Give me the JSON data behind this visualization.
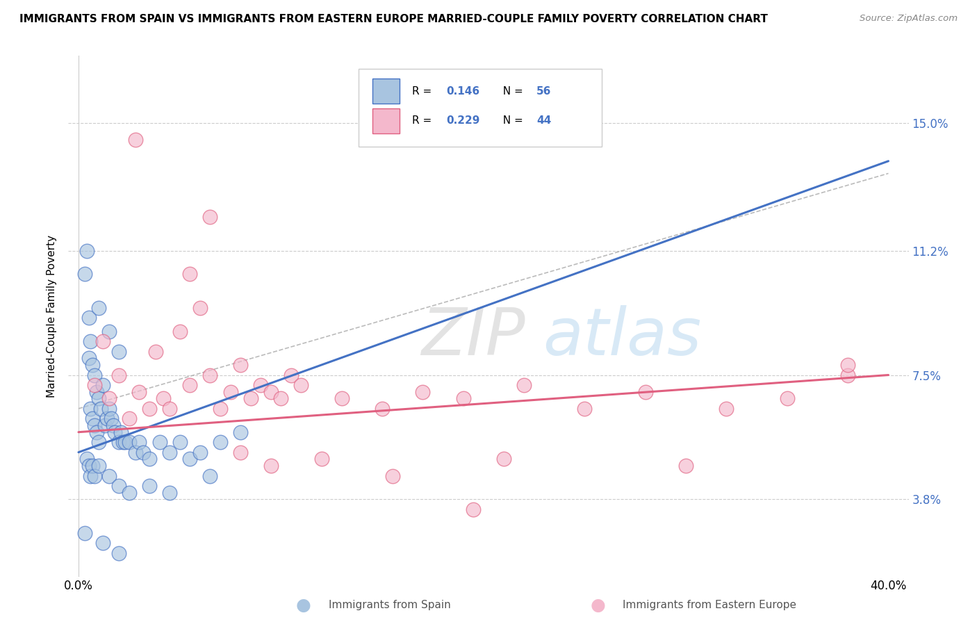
{
  "title": "IMMIGRANTS FROM SPAIN VS IMMIGRANTS FROM EASTERN EUROPE MARRIED-COUPLE FAMILY POVERTY CORRELATION CHART",
  "source": "Source: ZipAtlas.com",
  "ylabel": "Married-Couple Family Poverty",
  "yticks": [
    "3.8%",
    "7.5%",
    "11.2%",
    "15.0%"
  ],
  "ytick_vals": [
    3.8,
    7.5,
    11.2,
    15.0
  ],
  "xlim": [
    0.0,
    40.0
  ],
  "ylim": [
    1.5,
    17.0
  ],
  "color_spain": "#a8c4e0",
  "color_eastern": "#f4b8cc",
  "trendline_spain_color": "#4472c4",
  "trendline_eastern_color": "#e06080",
  "spain_scatter_x": [
    0.3,
    0.4,
    0.5,
    0.5,
    0.6,
    0.6,
    0.7,
    0.7,
    0.8,
    0.8,
    0.9,
    0.9,
    1.0,
    1.0,
    1.0,
    1.1,
    1.2,
    1.3,
    1.4,
    1.5,
    1.5,
    1.6,
    1.7,
    1.8,
    2.0,
    2.0,
    2.1,
    2.2,
    2.3,
    2.5,
    2.8,
    3.0,
    3.2,
    3.5,
    4.0,
    4.5,
    5.0,
    5.5,
    6.0,
    7.0,
    8.0,
    0.4,
    0.5,
    0.6,
    0.7,
    0.8,
    1.0,
    1.5,
    2.0,
    2.5,
    3.5,
    4.5,
    6.5,
    0.3,
    1.2,
    2.0
  ],
  "spain_scatter_y": [
    10.5,
    11.2,
    8.0,
    9.2,
    8.5,
    6.5,
    7.8,
    6.2,
    7.5,
    6.0,
    7.0,
    5.8,
    9.5,
    6.8,
    5.5,
    6.5,
    7.2,
    6.0,
    6.2,
    8.8,
    6.5,
    6.2,
    6.0,
    5.8,
    8.2,
    5.5,
    5.8,
    5.5,
    5.5,
    5.5,
    5.2,
    5.5,
    5.2,
    5.0,
    5.5,
    5.2,
    5.5,
    5.0,
    5.2,
    5.5,
    5.8,
    5.0,
    4.8,
    4.5,
    4.8,
    4.5,
    4.8,
    4.5,
    4.2,
    4.0,
    4.2,
    4.0,
    4.5,
    2.8,
    2.5,
    2.2
  ],
  "eastern_scatter_x": [
    0.8,
    1.2,
    1.5,
    2.0,
    2.5,
    3.0,
    3.5,
    3.8,
    4.2,
    4.5,
    5.0,
    5.5,
    6.0,
    6.5,
    7.0,
    7.5,
    8.0,
    8.5,
    9.0,
    9.5,
    10.0,
    10.5,
    11.0,
    13.0,
    15.0,
    17.0,
    19.0,
    22.0,
    25.0,
    28.0,
    32.0,
    35.0,
    38.0,
    2.8,
    5.5,
    6.5,
    8.0,
    9.5,
    12.0,
    15.5,
    21.0,
    30.0,
    38.0,
    19.5
  ],
  "eastern_scatter_y": [
    7.2,
    8.5,
    6.8,
    7.5,
    6.2,
    7.0,
    6.5,
    8.2,
    6.8,
    6.5,
    8.8,
    7.2,
    9.5,
    7.5,
    6.5,
    7.0,
    7.8,
    6.8,
    7.2,
    7.0,
    6.8,
    7.5,
    7.2,
    6.8,
    6.5,
    7.0,
    6.8,
    7.2,
    6.5,
    7.0,
    6.5,
    6.8,
    7.5,
    14.5,
    10.5,
    12.2,
    5.2,
    4.8,
    5.0,
    4.5,
    5.0,
    4.8,
    7.8,
    3.5
  ],
  "spain_trend_x0": 0.0,
  "spain_trend_y0": 5.2,
  "spain_trend_x1": 12.0,
  "spain_trend_y1": 7.8,
  "eastern_trend_x0": 0.0,
  "eastern_trend_y0": 5.8,
  "eastern_trend_x1": 40.0,
  "eastern_trend_y1": 7.5,
  "conf_x0": 0.0,
  "conf_y0": 6.5,
  "conf_x1": 40.0,
  "conf_y1": 13.5
}
